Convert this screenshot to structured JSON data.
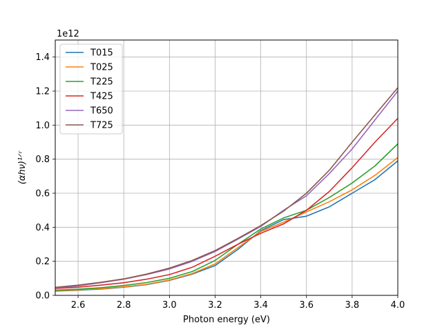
{
  "chart_data": {
    "type": "line",
    "title": "",
    "xlabel": "Photon energy (eV)",
    "ylabel": "(αhν)¹ᐟʳ",
    "y_offset_text": "1e12",
    "xlim": [
      2.5,
      4.0
    ],
    "ylim": [
      0.0,
      1.5
    ],
    "x_ticks": [
      2.6,
      2.8,
      3.0,
      3.2,
      3.4,
      3.6,
      3.8,
      4.0
    ],
    "x_tick_labels": [
      "2.6",
      "2.8",
      "3.0",
      "3.2",
      "3.4",
      "3.6",
      "3.8",
      "4.0"
    ],
    "y_ticks": [
      0.0,
      0.2,
      0.4,
      0.6,
      0.8,
      1.0,
      1.2,
      1.4
    ],
    "y_tick_labels": [
      "0.0",
      "0.2",
      "0.4",
      "0.6",
      "0.8",
      "1.0",
      "1.2",
      "1.4"
    ],
    "grid": true,
    "legend_position": "upper-left",
    "x": [
      2.5,
      2.6,
      2.7,
      2.8,
      2.9,
      3.0,
      3.1,
      3.2,
      3.3,
      3.4,
      3.5,
      3.6,
      3.7,
      3.8,
      3.9,
      4.0
    ],
    "series": [
      {
        "name": "T015",
        "color": "#1f77b4",
        "values": [
          0.025,
          0.03,
          0.037,
          0.048,
          0.063,
          0.088,
          0.125,
          0.175,
          0.27,
          0.38,
          0.445,
          0.465,
          0.52,
          0.6,
          0.68,
          0.79
        ]
      },
      {
        "name": "T025",
        "color": "#ff7f0e",
        "values": [
          0.027,
          0.032,
          0.039,
          0.05,
          0.065,
          0.09,
          0.128,
          0.185,
          0.28,
          0.375,
          0.43,
          0.49,
          0.55,
          0.62,
          0.705,
          0.81
        ]
      },
      {
        "name": "T225",
        "color": "#2ca02c",
        "values": [
          0.03,
          0.036,
          0.045,
          0.058,
          0.075,
          0.1,
          0.14,
          0.205,
          0.3,
          0.39,
          0.455,
          0.5,
          0.575,
          0.66,
          0.76,
          0.89
        ]
      },
      {
        "name": "T425",
        "color": "#d62728",
        "values": [
          0.04,
          0.048,
          0.06,
          0.074,
          0.095,
          0.122,
          0.165,
          0.23,
          0.3,
          0.365,
          0.42,
          0.5,
          0.61,
          0.75,
          0.9,
          1.04
        ]
      },
      {
        "name": "T650",
        "color": "#9467bd",
        "values": [
          0.043,
          0.056,
          0.074,
          0.095,
          0.122,
          0.155,
          0.2,
          0.258,
          0.33,
          0.405,
          0.5,
          0.585,
          0.715,
          0.86,
          1.03,
          1.2
        ]
      },
      {
        "name": "T725",
        "color": "#8c564b",
        "values": [
          0.047,
          0.06,
          0.077,
          0.097,
          0.125,
          0.16,
          0.205,
          0.263,
          0.335,
          0.41,
          0.495,
          0.6,
          0.735,
          0.9,
          1.06,
          1.22
        ]
      }
    ]
  }
}
